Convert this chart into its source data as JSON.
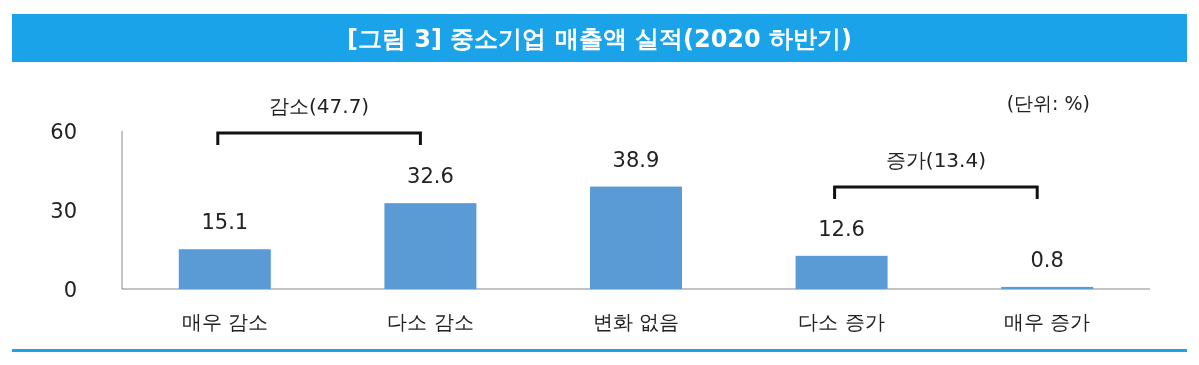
{
  "chart_data": {
    "type": "bar",
    "title": "[그림 3] 중소기업 매출액 실적(2020 하반기)",
    "categories": [
      "매우 감소",
      "다소 감소",
      "변화 없음",
      "다소 증가",
      "매우 증가"
    ],
    "values": [
      15.1,
      32.6,
      38.9,
      12.6,
      0.8
    ],
    "color": "#5b9bd5",
    "ylim": [
      0,
      60
    ],
    "yticks": [
      0,
      30,
      60
    ],
    "data_labels": true,
    "grid": false,
    "annotations": [
      "(단위: %)",
      "감소(47.7)",
      "증가(13.4)"
    ]
  }
}
